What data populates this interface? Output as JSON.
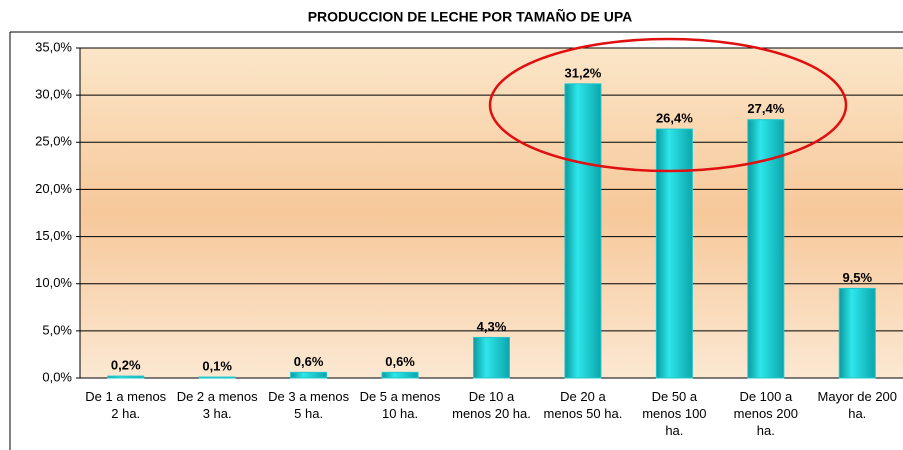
{
  "chart_data": {
    "type": "bar",
    "title": "PRODUCCION DE LECHE POR TAMAÑO DE UPA",
    "categories": [
      "De 1 a menos 2 ha.",
      "De 2 a menos 3 ha.",
      "De 3 a menos 5 ha.",
      "De 5 a menos 10 ha.",
      "De 10 a menos 20 ha.",
      "De 20 a menos 50 ha.",
      "De 50 a menos 100 ha.",
      "De 100 a menos 200 ha.",
      "Mayor de 200 ha."
    ],
    "values": [
      0.2,
      0.1,
      0.6,
      0.6,
      4.3,
      31.2,
      26.4,
      27.4,
      9.5
    ],
    "value_labels": [
      "0,2%",
      "0,1%",
      "0,6%",
      "0,6%",
      "4,3%",
      "31,2%",
      "26,4%",
      "27,4%",
      "9,5%"
    ],
    "color": "#1ec8cc",
    "ylim": [
      0,
      35
    ],
    "yticks": [
      {
        "value": 0,
        "label": "0,0%"
      },
      {
        "value": 5,
        "label": "5,0%"
      },
      {
        "value": 10,
        "label": "10,0%"
      },
      {
        "value": 15,
        "label": "15,0%"
      },
      {
        "value": 20,
        "label": "20,0%"
      },
      {
        "value": 25,
        "label": "25,0%"
      },
      {
        "value": 30,
        "label": "30,0%"
      },
      {
        "value": 35,
        "label": "35,0%"
      }
    ],
    "grid": true
  }
}
